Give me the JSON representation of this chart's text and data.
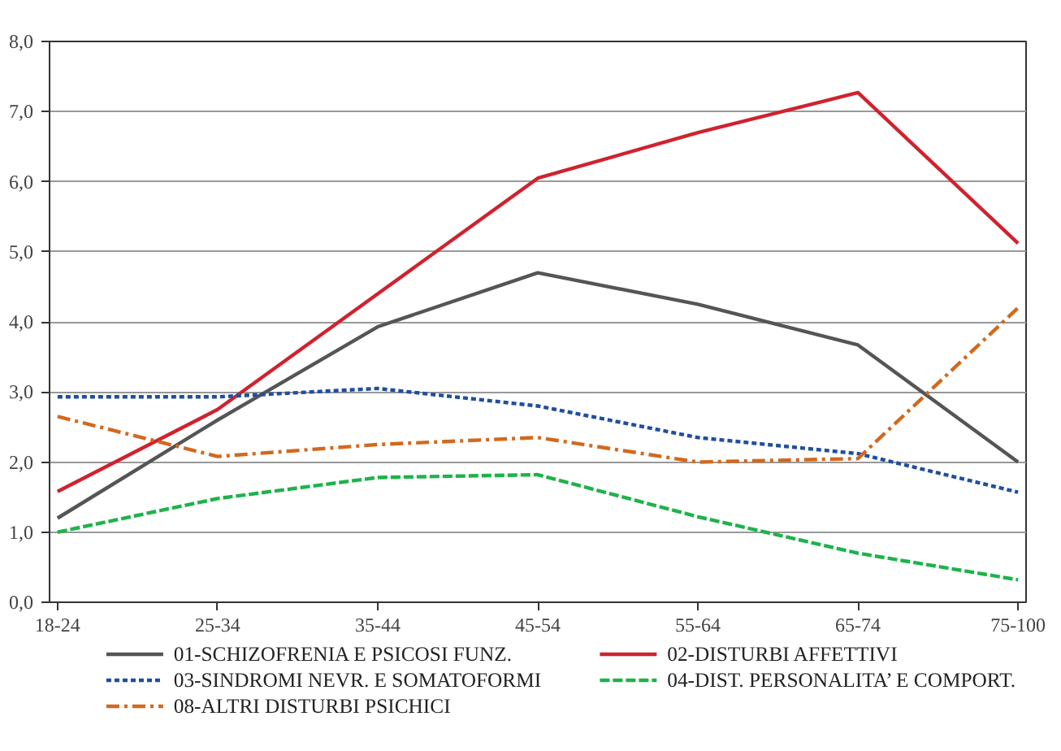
{
  "chart_data": {
    "type": "line",
    "categories": [
      "18-24",
      "25-34",
      "35-44",
      "45-54",
      "55-64",
      "65-74",
      "75-100"
    ],
    "series": [
      {
        "name": "01-SCHIZOFRENIA E PSICOSI FUNZ.",
        "color": "#555555",
        "line_style": "solid",
        "values": [
          1.2,
          2.6,
          3.93,
          4.7,
          4.25,
          3.67,
          2.0
        ]
      },
      {
        "name": "02-DISTURBI AFFETTIVI",
        "color": "#d0222e",
        "line_style": "solid",
        "values": [
          1.58,
          2.75,
          4.4,
          6.05,
          6.7,
          7.27,
          5.12
        ]
      },
      {
        "name": "03-SINDROMI NEVR. E SOMATOFORMI",
        "color": "#1f4ea0",
        "line_style": "dotted",
        "values": [
          2.93,
          2.93,
          3.05,
          2.8,
          2.35,
          2.12,
          1.57
        ]
      },
      {
        "name": "04-DIST. PERSONALITA’ E COMPORT.",
        "color": "#1db34a",
        "line_style": "dashed",
        "values": [
          1.0,
          1.48,
          1.78,
          1.82,
          1.22,
          0.7,
          0.32
        ]
      },
      {
        "name": "08-ALTRI DISTURBI PSICHICI",
        "color": "#d2691e",
        "line_style": "dashdot",
        "values": [
          2.65,
          2.08,
          2.25,
          2.35,
          2.0,
          2.05,
          4.2
        ]
      }
    ],
    "ylim": [
      0,
      8
    ],
    "yticks": [
      {
        "value": 0,
        "label": "0,0"
      },
      {
        "value": 1,
        "label": "1,0"
      },
      {
        "value": 2,
        "label": "2,0"
      },
      {
        "value": 3,
        "label": "3,0"
      },
      {
        "value": 4,
        "label": "4,0"
      },
      {
        "value": 5,
        "label": "5,0"
      },
      {
        "value": 6,
        "label": "6,0"
      },
      {
        "value": 7,
        "label": "7,0"
      },
      {
        "value": 8,
        "label": "8,0"
      }
    ],
    "grid": "y",
    "legend": "bottom",
    "marker": "none"
  }
}
